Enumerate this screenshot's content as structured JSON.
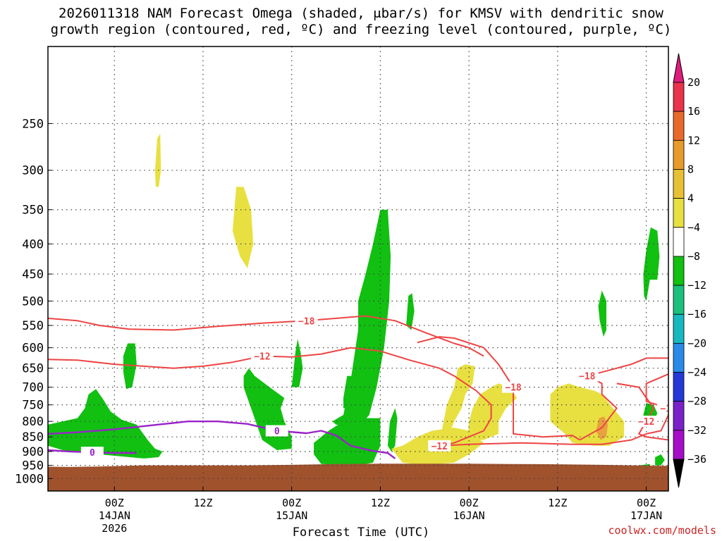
{
  "chart_data": {
    "type": "area",
    "title_line1": "2026011318 NAM Forecast Omega (shaded, μbar/s) for KMSV with dendritic snow",
    "title_line2": "growth region (contoured, red, ºC) and freezing level (contoured, purple, ºC)",
    "xlabel": "Forecast Time (UTC)",
    "credit": "coolwx.com/models",
    "y_axis": {
      "scale": "log-pressure",
      "ylim": [
        1050,
        185
      ],
      "ticks": [
        250,
        300,
        350,
        400,
        450,
        500,
        550,
        600,
        650,
        700,
        750,
        800,
        850,
        900,
        950,
        1000
      ]
    },
    "x_axis": {
      "xlim_hours": [
        -9,
        75
      ],
      "ticks": [
        {
          "hour": 0,
          "label1": "00Z",
          "label2": "14JAN",
          "label3": "2026"
        },
        {
          "hour": 12,
          "label1": "12Z",
          "label2": "",
          "label3": ""
        },
        {
          "hour": 24,
          "label1": "00Z",
          "label2": "15JAN",
          "label3": ""
        },
        {
          "hour": 36,
          "label1": "12Z",
          "label2": "",
          "label3": ""
        },
        {
          "hour": 48,
          "label1": "00Z",
          "label2": "16JAN",
          "label3": ""
        },
        {
          "hour": 60,
          "label1": "12Z",
          "label2": "",
          "label3": ""
        },
        {
          "hour": 72,
          "label1": "00Z",
          "label2": "17JAN",
          "label3": ""
        }
      ]
    },
    "grid": true,
    "colorbar": {
      "labels": [
        "20",
        "16",
        "12",
        "8",
        "4",
        "−4",
        "−8",
        "−12",
        "−16",
        "−20",
        "−24",
        "−28",
        "−32",
        "−36"
      ],
      "colors": [
        "#e8334a",
        "#e86a2a",
        "#e89a2a",
        "#e8c034",
        "#e8e040",
        "#ffffff",
        "#11c011",
        "#1ac07c",
        "#17b8c0",
        "#2a8ae8",
        "#2438d8",
        "#7a22c8",
        "#a40ec8",
        "#aaaaaa",
        "#000000"
      ],
      "top_arrow_color": "#e01c7c"
    },
    "ground_color": "#a0522d",
    "isotherms": [
      {
        "label": "−18",
        "color": "#ee4444",
        "points": [
          [
            -9,
            535
          ],
          [
            -5,
            540
          ],
          [
            -2,
            550
          ],
          [
            2,
            558
          ],
          [
            8,
            560
          ],
          [
            14,
            552
          ],
          [
            20,
            545
          ],
          [
            26,
            540
          ],
          [
            30,
            535
          ],
          [
            34,
            530
          ],
          [
            38,
            540
          ],
          [
            42,
            565
          ],
          [
            46,
            590
          ],
          [
            48,
            600
          ],
          [
            50,
            620
          ]
        ]
      },
      {
        "label": "−12",
        "color": "#ee4444",
        "points": [
          [
            -9,
            628
          ],
          [
            -5,
            630
          ],
          [
            0,
            640
          ],
          [
            4,
            645
          ],
          [
            8,
            650
          ],
          [
            12,
            645
          ],
          [
            16,
            635
          ],
          [
            20,
            620
          ],
          [
            24,
            622
          ],
          [
            28,
            615
          ],
          [
            32,
            600
          ],
          [
            36,
            608
          ],
          [
            40,
            630
          ],
          [
            44,
            650
          ],
          [
            46,
            670
          ]
        ]
      },
      {
        "label": "−18",
        "color": "#ee4444",
        "points": [
          [
            41,
            588
          ],
          [
            44,
            575
          ],
          [
            46,
            578
          ],
          [
            50,
            600
          ],
          [
            52,
            640
          ],
          [
            54,
            700
          ],
          [
            54,
            780
          ],
          [
            54,
            840
          ],
          [
            58,
            850
          ],
          [
            62,
            845
          ],
          [
            63,
            860
          ]
        ]
      },
      {
        "label": "−12",
        "color": "#ee4444",
        "points": [
          [
            46,
            670
          ],
          [
            49,
            710
          ],
          [
            51,
            750
          ],
          [
            51,
            790
          ],
          [
            50,
            830
          ],
          [
            46,
            870
          ],
          [
            44,
            880
          ],
          [
            48,
            875
          ],
          [
            55,
            870
          ],
          [
            62,
            875
          ],
          [
            66,
            875
          ],
          [
            70,
            860
          ],
          [
            72,
            840
          ]
        ]
      },
      {
        "label": "−18",
        "color": "#ee4444",
        "points": [
          [
            63,
            860
          ],
          [
            66,
            820
          ],
          [
            68,
            760
          ],
          [
            66,
            720
          ],
          [
            66,
            690
          ],
          [
            64,
            670
          ],
          [
            66,
            660
          ],
          [
            70,
            640
          ],
          [
            72,
            625
          ],
          [
            75,
            625
          ]
        ]
      },
      {
        "label": "−12",
        "color": "#ee4444",
        "points": [
          [
            68,
            690
          ],
          [
            71,
            700
          ],
          [
            73,
            760
          ],
          [
            72,
            800
          ],
          [
            71,
            840
          ],
          [
            72,
            850
          ],
          [
            75,
            860
          ]
        ]
      },
      {
        "label": "−12",
        "color": "#ee4444",
        "points": [
          [
            72,
            840
          ],
          [
            74,
            830
          ],
          [
            75,
            780
          ],
          [
            75,
            760
          ],
          [
            72,
            740
          ],
          [
            72,
            690
          ],
          [
            75,
            665
          ]
        ]
      }
    ],
    "freezing_level": {
      "label": "0",
      "color": "#9a22c8",
      "points": [
        [
          -9,
          840
        ],
        [
          -5,
          835
        ],
        [
          0,
          825
        ],
        [
          6,
          810
        ],
        [
          10,
          800
        ],
        [
          14,
          800
        ],
        [
          18,
          808
        ],
        [
          22,
          830
        ],
        [
          26,
          838
        ],
        [
          28,
          830
        ],
        [
          30,
          845
        ],
        [
          32,
          880
        ],
        [
          35,
          898
        ],
        [
          37,
          905
        ],
        [
          38,
          925
        ]
      ]
    },
    "freezing_level_low": {
      "label": "0",
      "color": "#9a22c8",
      "points": [
        [
          -9,
          895
        ],
        [
          -6,
          900
        ],
        [
          -3,
          903
        ],
        [
          0,
          905
        ],
        [
          3,
          905
        ]
      ]
    }
  }
}
